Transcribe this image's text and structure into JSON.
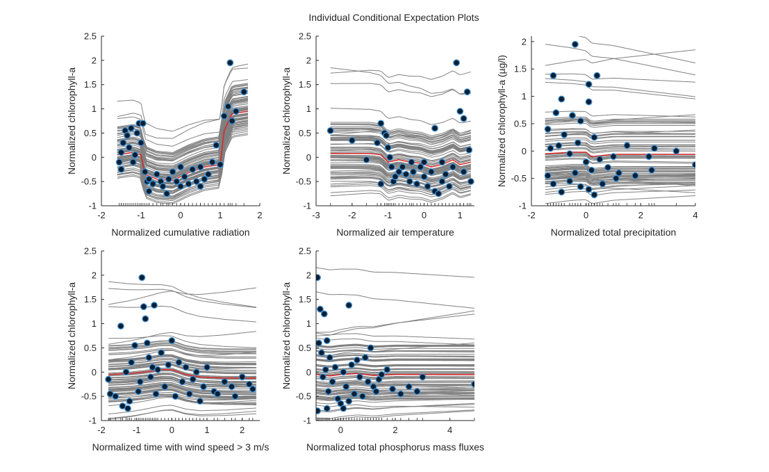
{
  "figure_title": "Individual Conditional Expectation Plots",
  "colors": {
    "ice_line": "#808080",
    "average_line": "#d62728",
    "marker_fill": "#0b1f33",
    "marker_edge": "#3f8fd2",
    "axis": "#262626"
  },
  "chart_data": [
    {
      "type": "line",
      "name": "radiation",
      "xlabel": "Normalized cumulative radiation",
      "ylabel": "Normalized chlorophyll-a",
      "xlim": [
        -2,
        2
      ],
      "ylim": [
        -1,
        2.5
      ],
      "xticks": [
        -2,
        -1,
        0,
        1,
        2
      ],
      "yticks": [
        -1,
        -0.5,
        0,
        0.5,
        1,
        1.5,
        2,
        2.5
      ],
      "x_range_data": [
        -1.6,
        1.7
      ],
      "average_curve": [
        [
          -1.6,
          0.05
        ],
        [
          -1.2,
          0.1
        ],
        [
          -1.0,
          0.05
        ],
        [
          -0.9,
          -0.35
        ],
        [
          -0.6,
          -0.45
        ],
        [
          -0.2,
          -0.48
        ],
        [
          0.2,
          -0.32
        ],
        [
          0.6,
          -0.2
        ],
        [
          1.0,
          -0.15
        ],
        [
          1.1,
          0.55
        ],
        [
          1.3,
          0.9
        ],
        [
          1.7,
          0.95
        ]
      ],
      "points": [
        [
          -1.55,
          -0.1
        ],
        [
          -1.5,
          0.1
        ],
        [
          -1.45,
          0.3
        ],
        [
          -1.4,
          0.55
        ],
        [
          -1.35,
          0.45
        ],
        [
          -1.3,
          0.2
        ],
        [
          -1.25,
          0.6
        ],
        [
          -1.2,
          -0.1
        ],
        [
          -1.15,
          0.05
        ],
        [
          -1.1,
          0.5
        ],
        [
          -1.05,
          0.7
        ],
        [
          -1.0,
          0.3
        ],
        [
          -0.95,
          0.7
        ],
        [
          -0.9,
          -0.3
        ],
        [
          -0.85,
          -0.5
        ],
        [
          -0.8,
          -0.45
        ],
        [
          -0.7,
          -0.55
        ],
        [
          -0.6,
          -0.35
        ],
        [
          -0.5,
          -0.5
        ],
        [
          -0.45,
          -0.6
        ],
        [
          -0.35,
          -0.75
        ],
        [
          -0.3,
          -0.45
        ],
        [
          -0.2,
          -0.3
        ],
        [
          -0.1,
          -0.5
        ],
        [
          0.0,
          -0.2
        ],
        [
          0.1,
          -0.4
        ],
        [
          0.2,
          -0.55
        ],
        [
          0.3,
          -0.25
        ],
        [
          0.4,
          -0.5
        ],
        [
          0.5,
          -0.2
        ],
        [
          0.6,
          -0.45
        ],
        [
          0.7,
          -0.35
        ],
        [
          0.8,
          -0.1
        ],
        [
          0.9,
          0.25
        ],
        [
          1.0,
          -0.15
        ],
        [
          1.1,
          0.85
        ],
        [
          1.2,
          1.05
        ],
        [
          1.25,
          1.95
        ],
        [
          1.3,
          0.75
        ],
        [
          1.4,
          0.95
        ],
        [
          1.6,
          1.35
        ],
        [
          -1.5,
          -0.25
        ],
        [
          -0.8,
          -0.7
        ],
        [
          0.0,
          -0.6
        ],
        [
          0.5,
          -0.6
        ]
      ]
    },
    {
      "type": "line",
      "name": "air-temperature",
      "xlabel": "Normalized air temperature",
      "ylabel": "Normalized chlorophyll-a",
      "xlim": [
        -3,
        1.4
      ],
      "ylim": [
        -1,
        2.5
      ],
      "xticks": [
        -3,
        -2,
        -1,
        0,
        1
      ],
      "yticks": [
        -1,
        -0.5,
        0,
        0.5,
        1,
        1.5,
        2,
        2.5
      ],
      "x_range_data": [
        -2.6,
        1.3
      ],
      "average_curve": [
        [
          -2.6,
          0.08
        ],
        [
          -1.5,
          0.08
        ],
        [
          -1.2,
          0.05
        ],
        [
          -1.0,
          -0.1
        ],
        [
          -0.7,
          -0.05
        ],
        [
          -0.4,
          -0.1
        ],
        [
          -0.1,
          -0.12
        ],
        [
          0.2,
          -0.2
        ],
        [
          0.5,
          -0.15
        ],
        [
          0.8,
          -0.05
        ],
        [
          1.0,
          -0.15
        ],
        [
          1.3,
          -0.1
        ]
      ],
      "points": [
        [
          -2.6,
          0.55
        ],
        [
          -2.0,
          0.35
        ],
        [
          -1.6,
          -0.05
        ],
        [
          -1.3,
          0.3
        ],
        [
          -1.2,
          0.7
        ],
        [
          -1.1,
          0.5
        ],
        [
          -1.05,
          0.45
        ],
        [
          -1.0,
          0.2
        ],
        [
          -0.95,
          0.0
        ],
        [
          -0.9,
          -0.2
        ],
        [
          -0.85,
          -0.5
        ],
        [
          -0.8,
          -0.4
        ],
        [
          -0.7,
          -0.3
        ],
        [
          -0.6,
          -0.2
        ],
        [
          -0.5,
          -0.35
        ],
        [
          -0.4,
          -0.5
        ],
        [
          -0.35,
          -0.1
        ],
        [
          -0.3,
          -0.3
        ],
        [
          -0.2,
          -0.55
        ],
        [
          -0.1,
          -0.2
        ],
        [
          0.0,
          -0.4
        ],
        [
          0.1,
          -0.6
        ],
        [
          0.2,
          -0.3
        ],
        [
          0.3,
          -0.7
        ],
        [
          0.4,
          -0.75
        ],
        [
          0.5,
          -0.5
        ],
        [
          0.6,
          -0.35
        ],
        [
          0.7,
          -0.6
        ],
        [
          0.8,
          -0.2
        ],
        [
          0.9,
          1.95
        ],
        [
          1.0,
          0.95
        ],
        [
          1.1,
          0.8
        ],
        [
          1.2,
          1.35
        ],
        [
          1.25,
          0.15
        ],
        [
          1.3,
          -0.5
        ],
        [
          0.3,
          0.6
        ],
        [
          -1.2,
          -0.55
        ],
        [
          0.0,
          -0.1
        ],
        [
          0.5,
          -0.1
        ],
        [
          1.1,
          -0.3
        ]
      ]
    },
    {
      "type": "line",
      "name": "precipitation",
      "xlabel": "Normalized total precipitation",
      "ylabel": "Normalized chlorophyll-a (µg/l)",
      "xlim": [
        -2,
        4
      ],
      "ylim": [
        -1,
        2.1
      ],
      "xticks": [
        -2,
        0,
        2,
        4
      ],
      "yticks": [
        -1,
        -0.5,
        0,
        0.5,
        1,
        1.5,
        2
      ],
      "x_range_data": [
        -1.5,
        4
      ],
      "average_curve": [
        [
          -1.5,
          -0.05
        ],
        [
          -0.5,
          -0.02
        ],
        [
          0.0,
          -0.02
        ],
        [
          0.2,
          -0.1
        ],
        [
          0.6,
          -0.08
        ],
        [
          1.0,
          -0.06
        ],
        [
          4.0,
          -0.06
        ]
      ],
      "points": [
        [
          -0.4,
          1.95
        ],
        [
          -1.2,
          1.38
        ],
        [
          0.4,
          1.38
        ],
        [
          0.1,
          1.22
        ],
        [
          -0.9,
          0.95
        ],
        [
          0.1,
          0.9
        ],
        [
          -1.1,
          0.7
        ],
        [
          -0.5,
          0.65
        ],
        [
          -1.4,
          0.4
        ],
        [
          -0.8,
          0.3
        ],
        [
          -0.2,
          0.55
        ],
        [
          0.3,
          0.25
        ],
        [
          -1.3,
          0.05
        ],
        [
          -1.0,
          0.1
        ],
        [
          -0.6,
          -0.05
        ],
        [
          -0.3,
          0.15
        ],
        [
          0.0,
          -0.2
        ],
        [
          0.2,
          -0.35
        ],
        [
          0.5,
          -0.15
        ],
        [
          0.8,
          -0.3
        ],
        [
          1.0,
          -0.1
        ],
        [
          1.2,
          -0.4
        ],
        [
          1.5,
          0.1
        ],
        [
          1.8,
          -0.45
        ],
        [
          2.3,
          -0.1
        ],
        [
          2.5,
          0.05
        ],
        [
          3.3,
          0.0
        ],
        [
          4.0,
          -0.25
        ],
        [
          -1.4,
          -0.45
        ],
        [
          -1.2,
          -0.6
        ],
        [
          -0.9,
          -0.75
        ],
        [
          -0.6,
          -0.55
        ],
        [
          -0.4,
          -0.4
        ],
        [
          0.1,
          -0.7
        ],
        [
          0.3,
          -0.8
        ],
        [
          0.6,
          -0.6
        ],
        [
          1.1,
          -0.5
        ],
        [
          2.4,
          -0.35
        ],
        [
          -0.2,
          -0.65
        ]
      ]
    },
    {
      "type": "line",
      "name": "wind-speed",
      "xlabel": "Normalized time  with wind speed > 3 m/s",
      "ylabel": "Normalized chlorophyll-a",
      "xlim": [
        -2,
        2.5
      ],
      "ylim": [
        -1,
        2.5
      ],
      "xticks": [
        -2,
        -1,
        0,
        1,
        2
      ],
      "yticks": [
        -1,
        -0.5,
        0,
        0.5,
        1,
        1.5,
        2,
        2.5
      ],
      "x_range_data": [
        -1.8,
        2.4
      ],
      "average_curve": [
        [
          -1.8,
          -0.05
        ],
        [
          -1.2,
          -0.03
        ],
        [
          -0.8,
          0.0
        ],
        [
          -0.3,
          0.05
        ],
        [
          0.0,
          0.05
        ],
        [
          0.4,
          -0.05
        ],
        [
          0.8,
          -0.1
        ],
        [
          1.5,
          -0.12
        ],
        [
          2.4,
          -0.12
        ]
      ],
      "points": [
        [
          -1.8,
          -0.15
        ],
        [
          -1.75,
          -0.45
        ],
        [
          -1.6,
          -0.5
        ],
        [
          -1.45,
          0.95
        ],
        [
          -1.3,
          0.0
        ],
        [
          -1.2,
          -0.6
        ],
        [
          -1.15,
          0.2
        ],
        [
          -1.05,
          0.55
        ],
        [
          -0.95,
          -0.4
        ],
        [
          -0.9,
          -0.2
        ],
        [
          -0.85,
          1.95
        ],
        [
          -0.8,
          1.35
        ],
        [
          -0.75,
          1.1
        ],
        [
          -0.7,
          0.6
        ],
        [
          -0.65,
          0.3
        ],
        [
          -0.6,
          -0.1
        ],
        [
          -0.55,
          0.1
        ],
        [
          -0.5,
          1.38
        ],
        [
          -0.45,
          -0.45
        ],
        [
          -0.4,
          0.05
        ],
        [
          -0.3,
          0.4
        ],
        [
          -0.2,
          -0.3
        ],
        [
          -0.1,
          0.15
        ],
        [
          0.0,
          0.65
        ],
        [
          0.1,
          -0.5
        ],
        [
          0.2,
          0.2
        ],
        [
          0.3,
          -0.2
        ],
        [
          0.4,
          0.1
        ],
        [
          0.5,
          -0.45
        ],
        [
          0.6,
          -0.15
        ],
        [
          0.7,
          0.0
        ],
        [
          0.8,
          -0.6
        ],
        [
          0.9,
          -0.3
        ],
        [
          1.0,
          0.1
        ],
        [
          1.2,
          -0.4
        ],
        [
          1.3,
          -0.45
        ],
        [
          1.5,
          -0.2
        ],
        [
          1.7,
          -0.3
        ],
        [
          1.8,
          -0.5
        ],
        [
          2.0,
          -0.1
        ],
        [
          2.2,
          -0.25
        ],
        [
          2.3,
          -0.35
        ],
        [
          -1.4,
          -0.7
        ],
        [
          -1.25,
          -0.75
        ]
      ]
    },
    {
      "type": "line",
      "name": "phosphorus",
      "xlabel": "Normalized total phosphorus mass fluxes",
      "ylabel": "Normalized chlorophyll-a",
      "xlim": [
        -0.9,
        4.9
      ],
      "ylim": [
        -1,
        2.5
      ],
      "xticks": [
        0,
        2,
        4
      ],
      "yticks": [
        -1,
        -0.5,
        0,
        0.5,
        1,
        1.5,
        2,
        2.5
      ],
      "x_range_data": [
        -0.9,
        4.9
      ],
      "average_curve": [
        [
          -0.9,
          -0.05
        ],
        [
          -0.4,
          -0.08
        ],
        [
          0.0,
          -0.05
        ],
        [
          0.6,
          -0.03
        ],
        [
          1.2,
          -0.07
        ],
        [
          2.0,
          -0.05
        ],
        [
          4.9,
          -0.05
        ]
      ],
      "points": [
        [
          -0.85,
          1.95
        ],
        [
          -0.8,
          0.6
        ],
        [
          -0.75,
          1.3
        ],
        [
          -0.7,
          0.4
        ],
        [
          -0.65,
          -0.1
        ],
        [
          -0.6,
          1.2
        ],
        [
          -0.55,
          0.05
        ],
        [
          -0.5,
          0.65
        ],
        [
          -0.45,
          -0.4
        ],
        [
          -0.4,
          0.3
        ],
        [
          -0.3,
          -0.2
        ],
        [
          -0.2,
          0.1
        ],
        [
          -0.1,
          -0.55
        ],
        [
          0.0,
          -0.65
        ],
        [
          0.1,
          0.0
        ],
        [
          0.2,
          -0.3
        ],
        [
          0.3,
          1.38
        ],
        [
          0.4,
          0.15
        ],
        [
          0.5,
          -0.45
        ],
        [
          0.6,
          0.25
        ],
        [
          0.7,
          -0.1
        ],
        [
          0.8,
          -0.5
        ],
        [
          0.9,
          0.3
        ],
        [
          1.0,
          -0.2
        ],
        [
          1.1,
          0.5
        ],
        [
          1.2,
          -0.3
        ],
        [
          1.3,
          -0.4
        ],
        [
          1.4,
          -0.15
        ],
        [
          1.5,
          -0.05
        ],
        [
          1.7,
          0.05
        ],
        [
          1.9,
          -0.35
        ],
        [
          2.2,
          -0.45
        ],
        [
          2.5,
          -0.3
        ],
        [
          2.8,
          -0.4
        ],
        [
          3.0,
          -0.1
        ],
        [
          4.9,
          -0.25
        ],
        [
          -0.85,
          -0.8
        ],
        [
          -0.5,
          -0.75
        ],
        [
          0.3,
          -0.6
        ],
        [
          0.1,
          -0.75
        ]
      ]
    }
  ]
}
